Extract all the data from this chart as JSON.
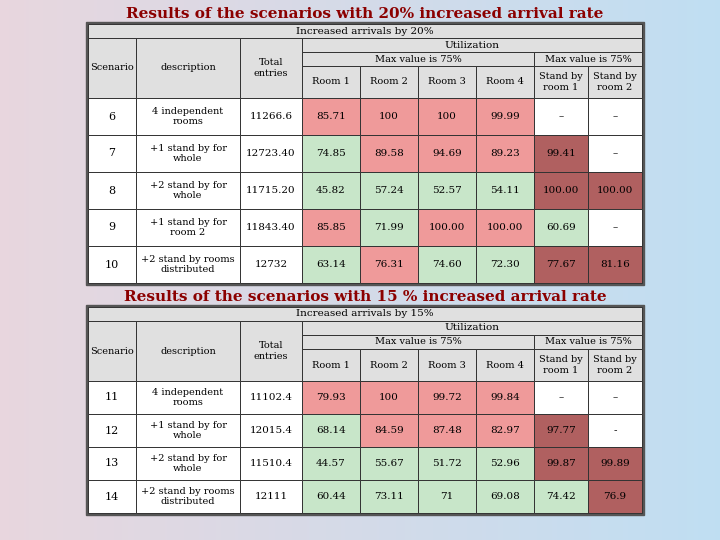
{
  "title1": "Results of the scenarios with 20% increased arrival rate",
  "title2": "Results of the scenarios with 15 % increased arrival rate",
  "table1_header": "Increased arrivals by 20%",
  "table2_header": "Increased arrivals by 15%",
  "table1_rows": [
    [
      6,
      "4 independent\nrooms",
      "11266.6",
      "85.71",
      "100",
      "100",
      "99.99",
      "–",
      "–"
    ],
    [
      7,
      "+1 stand by for\nwhole",
      "12723.40",
      "74.85",
      "89.58",
      "94.69",
      "89.23",
      "99.41",
      "–"
    ],
    [
      8,
      "+2 stand by for\nwhole",
      "11715.20",
      "45.82",
      "57.24",
      "52.57",
      "54.11",
      "100.00",
      "100.00"
    ],
    [
      9,
      "+1 stand by for\nroom 2",
      "11843.40",
      "85.85",
      "71.99",
      "100.00",
      "100.00",
      "60.69",
      "–"
    ],
    [
      10,
      "+2 stand by rooms\ndistributed",
      "12732",
      "63.14",
      "76.31",
      "74.60",
      "72.30",
      "77.67",
      "81.16"
    ]
  ],
  "table2_rows": [
    [
      11,
      "4 independent\nrooms",
      "11102.4",
      "79.93",
      "100",
      "99.72",
      "99.84",
      "–",
      "–"
    ],
    [
      12,
      "+1 stand by for\nwhole",
      "12015.4",
      "68.14",
      "84.59",
      "87.48",
      "82.97",
      "97.77",
      "-"
    ],
    [
      13,
      "+2 stand by for\nwhole",
      "11510.4",
      "44.57",
      "55.67",
      "51.72",
      "52.96",
      "99.87",
      "99.89"
    ],
    [
      14,
      "+2 stand by rooms\ndistributed",
      "12111",
      "60.44",
      "73.11",
      "71",
      "69.08",
      "74.42",
      "76.9"
    ]
  ],
  "utilization_header": "Utilization",
  "max_value_header": "Max value is 75%",
  "title_color": "#8B0000",
  "green_light": "#c8e6c9",
  "red_light": "#ef9a9a",
  "red_medium": "#b06060",
  "subheader_bg": "#e0e0e0",
  "outer_border_bg": "#888888"
}
